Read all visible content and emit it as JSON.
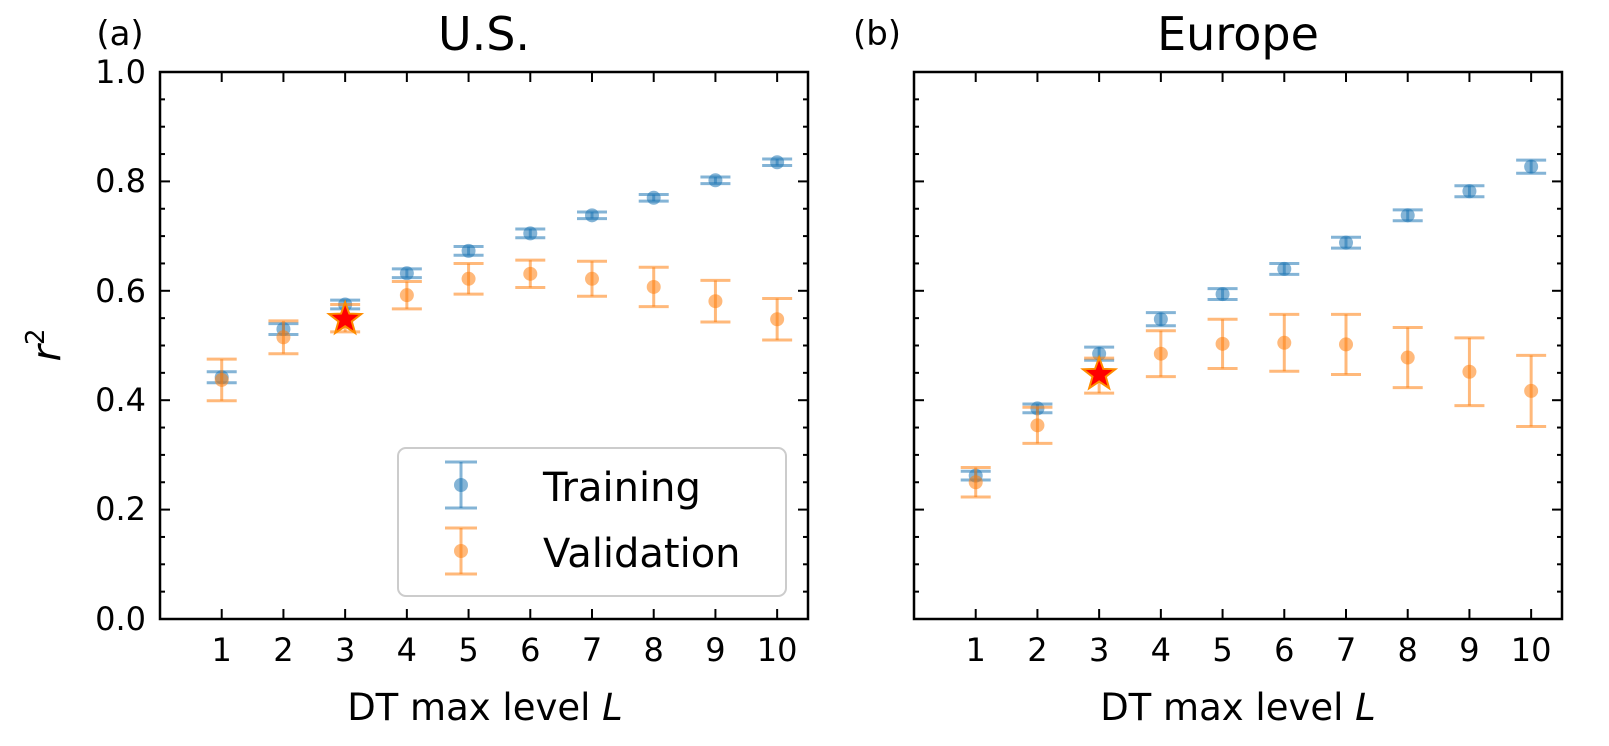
{
  "colors": {
    "training": "#1f77b4",
    "validation": "#ff7f0e",
    "star_fill": "#ff0000",
    "star_edge": "#ff8c00"
  },
  "legend": {
    "training_label": "Training",
    "validation_label": "Validation",
    "placement": "lower-right"
  },
  "chart_data": [
    {
      "panel_label": "(a)",
      "type": "scatter",
      "title": "U.S.",
      "xlabel": "DT max level",
      "xlabel_var": "L",
      "ylabel": "r",
      "ylabel_sup": "2",
      "ylim": [
        0.0,
        1.0
      ],
      "yticks": [
        "0.0",
        "0.2",
        "0.4",
        "0.6",
        "0.8",
        "1.0"
      ],
      "x": [
        1,
        2,
        3,
        4,
        5,
        6,
        7,
        8,
        9,
        10
      ],
      "xticks": [
        "1",
        "2",
        "3",
        "4",
        "5",
        "6",
        "7",
        "8",
        "9",
        "10"
      ],
      "highlight_x": 3,
      "highlight_y": 0.548,
      "series": [
        {
          "name": "Training",
          "values": [
            0.442,
            0.53,
            0.575,
            0.632,
            0.673,
            0.705,
            0.738,
            0.77,
            0.802,
            0.835
          ],
          "error": [
            0.01,
            0.01,
            0.008,
            0.008,
            0.008,
            0.008,
            0.006,
            0.006,
            0.006,
            0.006
          ]
        },
        {
          "name": "Validation",
          "values": [
            0.437,
            0.515,
            0.55,
            0.592,
            0.622,
            0.631,
            0.622,
            0.607,
            0.581,
            0.548
          ],
          "error": [
            0.038,
            0.03,
            0.025,
            0.025,
            0.028,
            0.025,
            0.032,
            0.036,
            0.038,
            0.038
          ]
        }
      ]
    },
    {
      "panel_label": "(b)",
      "type": "scatter",
      "title": "Europe",
      "xlabel": "DT max level",
      "xlabel_var": "L",
      "ylim": [
        0.0,
        1.0
      ],
      "x": [
        1,
        2,
        3,
        4,
        5,
        6,
        7,
        8,
        9,
        10
      ],
      "xticks": [
        "1",
        "2",
        "3",
        "4",
        "5",
        "6",
        "7",
        "8",
        "9",
        "10"
      ],
      "highlight_x": 3,
      "highlight_y": 0.447,
      "series": [
        {
          "name": "Training",
          "values": [
            0.262,
            0.385,
            0.485,
            0.548,
            0.594,
            0.64,
            0.688,
            0.738,
            0.782,
            0.827
          ],
          "error": [
            0.008,
            0.008,
            0.012,
            0.012,
            0.01,
            0.01,
            0.01,
            0.01,
            0.01,
            0.012
          ]
        },
        {
          "name": "Validation",
          "values": [
            0.25,
            0.354,
            0.445,
            0.485,
            0.503,
            0.505,
            0.502,
            0.478,
            0.452,
            0.417
          ],
          "error": [
            0.027,
            0.033,
            0.032,
            0.042,
            0.045,
            0.052,
            0.055,
            0.055,
            0.062,
            0.065
          ]
        }
      ]
    }
  ]
}
